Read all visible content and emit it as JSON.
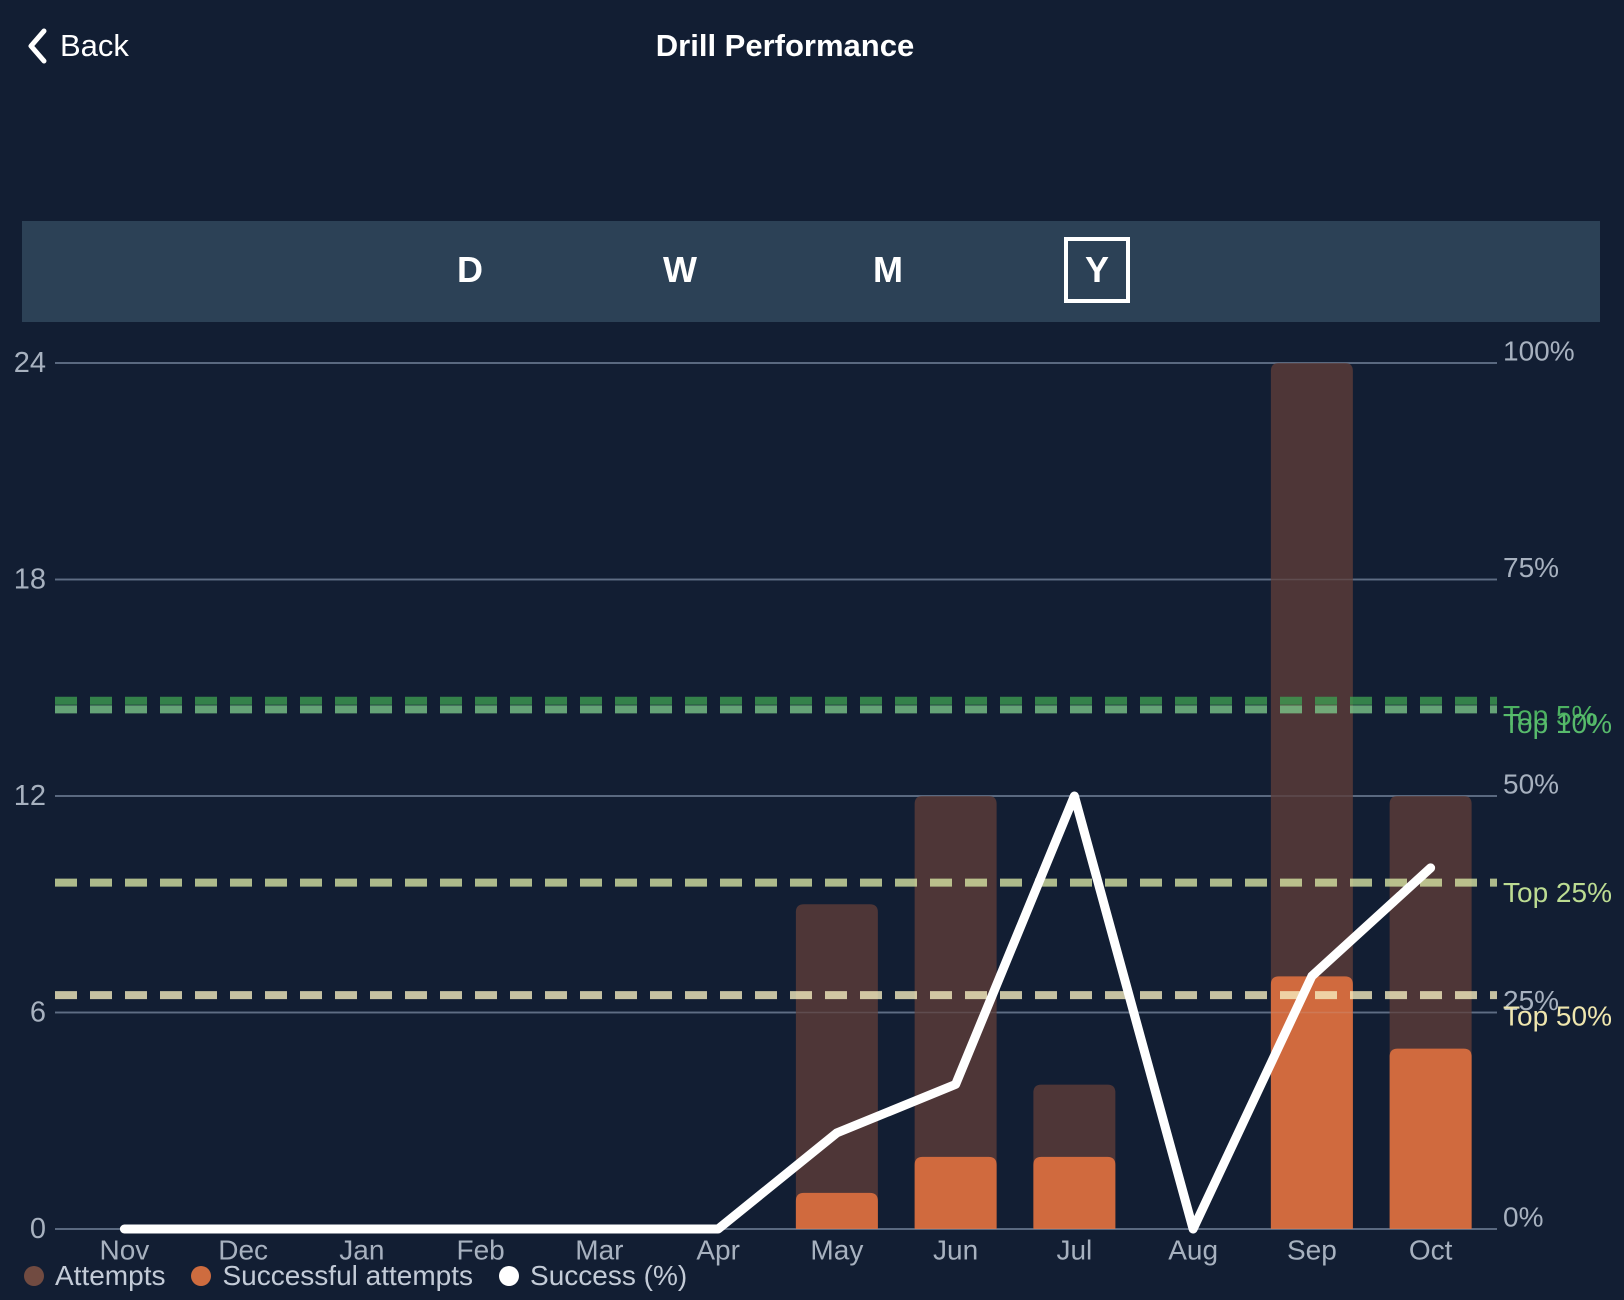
{
  "header": {
    "back_label": "Back",
    "title": "Drill Performance"
  },
  "period_selector": {
    "options": [
      "D",
      "W",
      "M",
      "Y"
    ],
    "selected": "Y"
  },
  "chart_data": {
    "type": "bar+line",
    "categories": [
      "Nov",
      "Dec",
      "Jan",
      "Feb",
      "Mar",
      "Apr",
      "May",
      "Jun",
      "Jul",
      "Aug",
      "Sep",
      "Oct"
    ],
    "series": [
      {
        "name": "Attempts",
        "type": "bar",
        "color": "#4E3637",
        "values": [
          0,
          0,
          0,
          0,
          0,
          0,
          9,
          12,
          4,
          0,
          24,
          12
        ]
      },
      {
        "name": "Successful attempts",
        "type": "bar",
        "color": "#D06A3E",
        "values": [
          0,
          0,
          0,
          0,
          0,
          0,
          1,
          2,
          2,
          0,
          7,
          5
        ]
      },
      {
        "name": "Success (%)",
        "type": "line",
        "color": "#FFFFFF",
        "values": [
          0,
          0,
          0,
          0,
          0,
          0,
          11.1,
          16.7,
          50,
          0,
          29.2,
          41.7
        ]
      }
    ],
    "left_axis": {
      "ticks": [
        0,
        6,
        12,
        18,
        24
      ],
      "range": [
        0,
        24
      ]
    },
    "right_axis": {
      "ticks": [
        0,
        25,
        50,
        75,
        100
      ],
      "suffix": "%",
      "range": [
        0,
        100
      ]
    },
    "benchmarks": [
      {
        "label": "Top 5%",
        "value": 61,
        "line_color": "#3E9D51",
        "label_color": "#4CB161"
      },
      {
        "label": "Top 10%",
        "value": 60,
        "line_color": "#7CC98B",
        "label_color": "#58BB6C"
      },
      {
        "label": "Top 25%",
        "value": 40,
        "line_color": "#D9E7A4",
        "label_color": "#BCDC92"
      },
      {
        "label": "Top 50%",
        "value": 27,
        "line_color": "#F7EFC2",
        "label_color": "#EFE6AE"
      }
    ],
    "legend": [
      {
        "label": "Attempts",
        "color": "#714B41"
      },
      {
        "label": "Successful attempts",
        "color": "#CE6C3F"
      },
      {
        "label": "Success (%)",
        "color": "#FFFFFF"
      }
    ],
    "colors": {
      "background": "#121E33",
      "selector_background": "#2C4156",
      "grid": "#55647C",
      "axis_text": "#A7B1BF",
      "line": "#FFFFFF"
    }
  }
}
